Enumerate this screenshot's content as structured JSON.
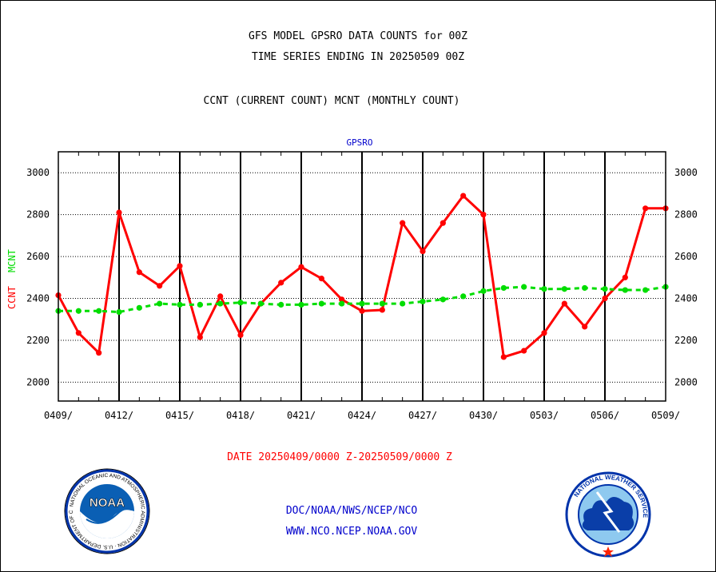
{
  "header": {
    "title_line1": "GFS MODEL GPSRO DATA COUNTS for 00Z",
    "title_line2": "TIME SERIES ENDING IN 20250509 00Z",
    "title_line3": "CCNT (CURRENT COUNT) MCNT (MONTHLY COUNT)"
  },
  "footer": {
    "date_range": "DATE 20250409/0000 Z-20250509/0000 Z",
    "credit_line1": "DOC/NOAA/NWS/NCEP/NCO",
    "credit_line2": "WWW.NCO.NCEP.NOAA.GOV"
  },
  "logos": {
    "left": {
      "icon": "noaa-logo",
      "text": "NOAA",
      "ring_text": "NATIONAL OCEANIC AND ATMOSPHERIC ADMINISTRATION · U.S. DEPARTMENT OF COMMERCE"
    },
    "right": {
      "icon": "nws-logo",
      "ring_text": "NATIONAL WEATHER SERVICE"
    }
  },
  "chart_data": {
    "type": "line",
    "panel_title": "GPSRO",
    "ylabel_left": {
      "ccnt": "CCNT",
      "mcnt": "MCNT"
    },
    "x_tick_labels": [
      "0409/",
      "0412/",
      "0415/",
      "0418/",
      "0421/",
      "0424/",
      "0427/",
      "0430/",
      "0503/",
      "0506/",
      "0509/"
    ],
    "x_dates": [
      "0409",
      "0410",
      "0411",
      "0412",
      "0413",
      "0414",
      "0415",
      "0416",
      "0417",
      "0418",
      "0419",
      "0420",
      "0421",
      "0422",
      "0423",
      "0424",
      "0425",
      "0426",
      "0427",
      "0428",
      "0429",
      "0430",
      "0501",
      "0502",
      "0503",
      "0504",
      "0505",
      "0506",
      "0507",
      "0508",
      "0509"
    ],
    "xlim": [
      "0409",
      "0509"
    ],
    "ylim": [
      1910,
      3100
    ],
    "y_ticks": [
      2000,
      2200,
      2400,
      2600,
      2800,
      3000
    ],
    "grid": true,
    "series": [
      {
        "name": "CCNT",
        "color": "#ff0000",
        "style": "solid",
        "values": [
          2415,
          2235,
          2140,
          2810,
          2525,
          2460,
          2555,
          2215,
          2410,
          2225,
          2375,
          2475,
          2550,
          2495,
          2395,
          2340,
          2345,
          2760,
          2625,
          2760,
          2890,
          2800,
          2120,
          2150,
          2235,
          2375,
          2265,
          2400,
          2500,
          2830,
          2830
        ]
      },
      {
        "name": "MCNT",
        "color": "#00dd00",
        "style": "dashed",
        "values": [
          2340,
          2340,
          2340,
          2335,
          2355,
          2375,
          2370,
          2370,
          2375,
          2380,
          2375,
          2370,
          2370,
          2375,
          2375,
          2375,
          2375,
          2375,
          2385,
          2395,
          2410,
          2435,
          2450,
          2455,
          2445,
          2445,
          2450,
          2445,
          2440,
          2440,
          2455
        ]
      }
    ]
  }
}
